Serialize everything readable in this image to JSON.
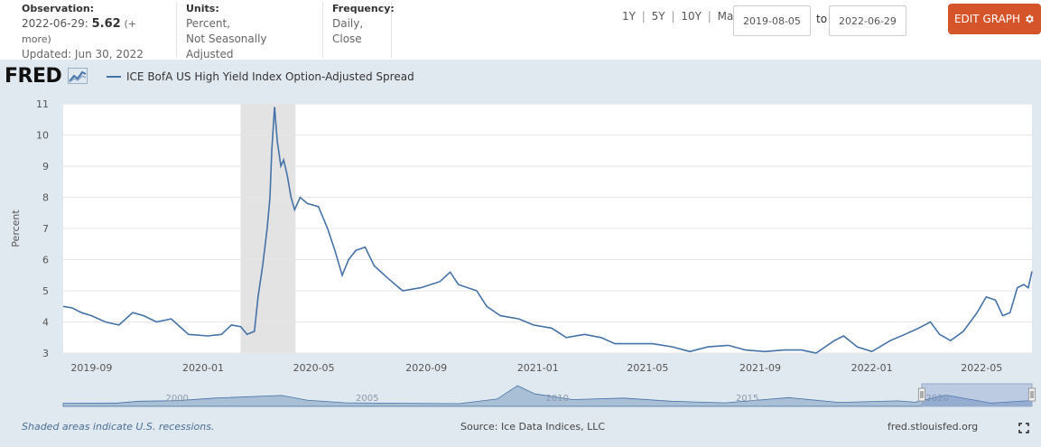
{
  "header": {
    "observation": {
      "label": "Observation:",
      "date": "2022-06-29:",
      "value": "5.62",
      "more": "(+ more)",
      "updated": "Updated: Jun 30, 2022"
    },
    "units": {
      "label": "Units:",
      "line1": "Percent,",
      "line2": "Not Seasonally Adjusted"
    },
    "frequency": {
      "label": "Frequency:",
      "line1": "Daily,",
      "line2": "Close"
    },
    "ranges": [
      "1Y",
      "5Y",
      "10Y",
      "Max"
    ],
    "range_sep": "|",
    "start_date": "2019-08-05",
    "to_label": "to",
    "end_date": "2022-06-29",
    "edit_label": "EDIT GRAPH",
    "edit_icon": "gear-icon",
    "accent": "#d6542a"
  },
  "logo": "FRED",
  "legend_label": "ICE BofA US High Yield Index Option-Adjusted Spread",
  "footer": {
    "note": "Shaded areas indicate U.S. recessions.",
    "source": "Source: Ice Data Indices, LLC",
    "url": "fred.stlouisfed.org"
  },
  "chart_data": {
    "type": "line",
    "title": "",
    "xlabel": "",
    "ylabel": "Percent",
    "ylim": [
      3,
      11
    ],
    "yticks": [
      3,
      4,
      5,
      6,
      7,
      8,
      9,
      10,
      11
    ],
    "xlim": [
      "2019-08-05",
      "2022-06-29"
    ],
    "xticks": [
      "2019-09",
      "2020-01",
      "2020-05",
      "2020-09",
      "2021-01",
      "2021-05",
      "2021-09",
      "2022-01",
      "2022-05"
    ],
    "recession": {
      "start": "2020-02-15",
      "end": "2020-04-15"
    },
    "line_color": "#4572a7",
    "grid": "horizontal",
    "series": [
      {
        "name": "ICE BofA US High Yield Index Option-Adjusted Spread",
        "points": [
          [
            "2019-08-05",
            4.5
          ],
          [
            "2019-08-15",
            4.45
          ],
          [
            "2019-08-25",
            4.3
          ],
          [
            "2019-09-05",
            4.2
          ],
          [
            "2019-09-20",
            4.0
          ],
          [
            "2019-10-05",
            3.9
          ],
          [
            "2019-10-20",
            4.3
          ],
          [
            "2019-11-01",
            4.2
          ],
          [
            "2019-11-15",
            4.0
          ],
          [
            "2019-12-01",
            4.1
          ],
          [
            "2019-12-20",
            3.6
          ],
          [
            "2020-01-10",
            3.55
          ],
          [
            "2020-01-25",
            3.6
          ],
          [
            "2020-02-05",
            3.9
          ],
          [
            "2020-02-15",
            3.85
          ],
          [
            "2020-02-22",
            3.6
          ],
          [
            "2020-03-01",
            3.7
          ],
          [
            "2020-03-05",
            4.8
          ],
          [
            "2020-03-10",
            5.8
          ],
          [
            "2020-03-15",
            7.0
          ],
          [
            "2020-03-18",
            8.0
          ],
          [
            "2020-03-20",
            9.5
          ],
          [
            "2020-03-23",
            10.9
          ],
          [
            "2020-03-26",
            9.8
          ],
          [
            "2020-03-30",
            9.0
          ],
          [
            "2020-04-02",
            9.2
          ],
          [
            "2020-04-06",
            8.7
          ],
          [
            "2020-04-10",
            8.0
          ],
          [
            "2020-04-14",
            7.6
          ],
          [
            "2020-04-20",
            8.0
          ],
          [
            "2020-04-28",
            7.8
          ],
          [
            "2020-05-10",
            7.7
          ],
          [
            "2020-05-20",
            7.0
          ],
          [
            "2020-05-28",
            6.3
          ],
          [
            "2020-06-05",
            5.5
          ],
          [
            "2020-06-12",
            6.0
          ],
          [
            "2020-06-20",
            6.3
          ],
          [
            "2020-06-30",
            6.4
          ],
          [
            "2020-07-10",
            5.8
          ],
          [
            "2020-07-25",
            5.4
          ],
          [
            "2020-08-10",
            5.0
          ],
          [
            "2020-08-30",
            5.1
          ],
          [
            "2020-09-20",
            5.3
          ],
          [
            "2020-10-01",
            5.6
          ],
          [
            "2020-10-10",
            5.2
          ],
          [
            "2020-10-30",
            5.0
          ],
          [
            "2020-11-10",
            4.5
          ],
          [
            "2020-11-25",
            4.2
          ],
          [
            "2020-12-15",
            4.1
          ],
          [
            "2020-12-31",
            3.9
          ],
          [
            "2021-01-20",
            3.8
          ],
          [
            "2021-02-05",
            3.5
          ],
          [
            "2021-02-25",
            3.6
          ],
          [
            "2021-03-15",
            3.5
          ],
          [
            "2021-03-30",
            3.3
          ],
          [
            "2021-04-20",
            3.3
          ],
          [
            "2021-05-10",
            3.3
          ],
          [
            "2021-06-01",
            3.2
          ],
          [
            "2021-06-20",
            3.05
          ],
          [
            "2021-07-10",
            3.2
          ],
          [
            "2021-08-01",
            3.25
          ],
          [
            "2021-08-20",
            3.1
          ],
          [
            "2021-09-10",
            3.05
          ],
          [
            "2021-10-01",
            3.1
          ],
          [
            "2021-10-20",
            3.1
          ],
          [
            "2021-11-05",
            3.0
          ],
          [
            "2021-11-25",
            3.4
          ],
          [
            "2021-12-05",
            3.55
          ],
          [
            "2021-12-20",
            3.2
          ],
          [
            "2022-01-05",
            3.05
          ],
          [
            "2022-01-25",
            3.4
          ],
          [
            "2022-02-10",
            3.6
          ],
          [
            "2022-02-25",
            3.8
          ],
          [
            "2022-03-10",
            4.0
          ],
          [
            "2022-03-20",
            3.6
          ],
          [
            "2022-04-01",
            3.4
          ],
          [
            "2022-04-15",
            3.7
          ],
          [
            "2022-04-30",
            4.3
          ],
          [
            "2022-05-10",
            4.8
          ],
          [
            "2022-05-20",
            4.7
          ],
          [
            "2022-05-28",
            4.2
          ],
          [
            "2022-06-05",
            4.3
          ],
          [
            "2022-06-13",
            5.1
          ],
          [
            "2022-06-20",
            5.2
          ],
          [
            "2022-06-25",
            5.1
          ],
          [
            "2022-06-29",
            5.62
          ]
        ]
      }
    ]
  },
  "navigator": {
    "ticks": [
      "2000",
      "2005",
      "2010",
      "2015",
      "2020"
    ],
    "range_start": "1997-01-01",
    "range_end": "2022-06-29",
    "selected_start": "2019-08-05",
    "selected_end": "2022-06-29",
    "history": [
      [
        "1997-01-01",
        3.0
      ],
      [
        "1998-06-01",
        3.2
      ],
      [
        "1999-01-01",
        5.0
      ],
      [
        "2000-01-01",
        5.5
      ],
      [
        "2001-01-01",
        8.0
      ],
      [
        "2002-10-01",
        10.5
      ],
      [
        "2003-06-01",
        6.0
      ],
      [
        "2004-06-01",
        3.5
      ],
      [
        "2006-01-01",
        3.0
      ],
      [
        "2007-06-01",
        2.6
      ],
      [
        "2008-06-01",
        7.0
      ],
      [
        "2008-12-15",
        19.9
      ],
      [
        "2009-06-01",
        12.0
      ],
      [
        "2010-06-01",
        6.5
      ],
      [
        "2011-10-01",
        8.0
      ],
      [
        "2013-01-01",
        5.0
      ],
      [
        "2014-06-01",
        3.4
      ],
      [
        "2016-02-01",
        8.4
      ],
      [
        "2017-06-01",
        3.8
      ],
      [
        "2018-12-20",
        5.3
      ],
      [
        "2019-06-01",
        4.0
      ],
      [
        "2020-03-23",
        10.9
      ],
      [
        "2021-06-01",
        3.1
      ],
      [
        "2022-06-29",
        5.62
      ]
    ]
  }
}
